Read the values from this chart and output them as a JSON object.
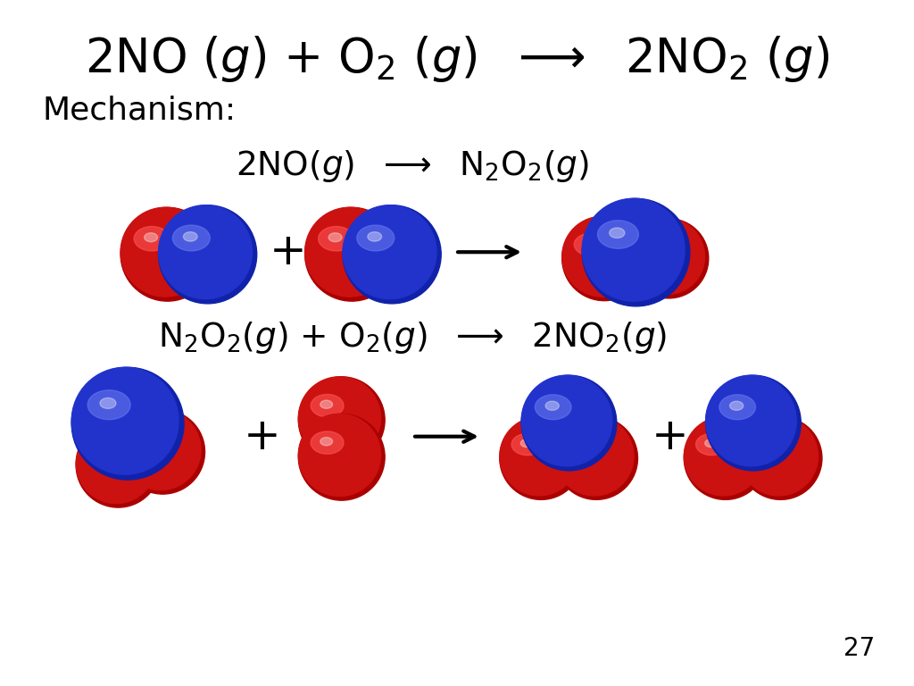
{
  "bg_color": "#ffffff",
  "page_num": "27",
  "red_dark": "#aa0000",
  "red_mid": "#cc1111",
  "red_light": "#ff5555",
  "blue_dark": "#1122aa",
  "blue_mid": "#2233cc",
  "blue_light": "#6677ee"
}
